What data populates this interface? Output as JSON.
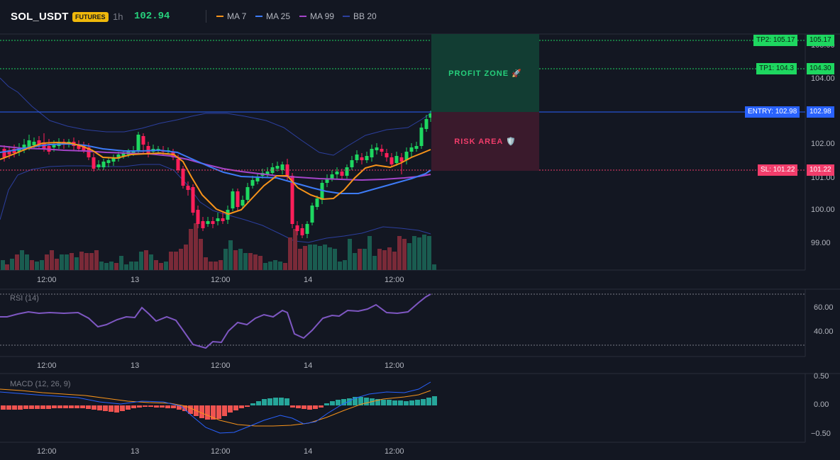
{
  "header": {
    "symbol": "SOL_USDT",
    "badge": "FUTURES",
    "timeframe": "1h",
    "price": "102.94"
  },
  "legend": [
    {
      "label": "MA 7",
      "color": "#f7931a"
    },
    {
      "label": "MA 25",
      "color": "#3d7bf7"
    },
    {
      "label": "MA 99",
      "color": "#a445c9"
    },
    {
      "label": "BB 20",
      "color": "#2c3f9e"
    }
  ],
  "zones": {
    "profit": "PROFIT ZONE 🚀",
    "risk": "RISK AREA 🛡️"
  },
  "price_tags": {
    "tp2": "TP2: 105.17",
    "tp2_axis": "105.17",
    "tp1": "TP1: 104.3",
    "tp1_axis": "104.30",
    "entry": "ENTRY: 102.98",
    "entry_axis": "102.98",
    "sl": "SL: 101.22",
    "sl_axis": "101.22"
  },
  "price_axis": [
    "105.00",
    "104.00",
    "102.00",
    "101.00",
    "100.00",
    "99.00"
  ],
  "time_axis": [
    "12:00",
    "13",
    "12:00",
    "14",
    "12:00"
  ],
  "rsi": {
    "title": "RSI (14)",
    "axis": [
      "60.00",
      "40.00"
    ]
  },
  "macd": {
    "title": "MACD (12, 26, 9)",
    "axis": [
      "0.50",
      "0.00",
      "−0.50"
    ]
  },
  "colors": {
    "up": "#26a69a",
    "down": "#ef5350",
    "candle_up": "#1ed760",
    "candle_down": "#ff1f5a",
    "vol_up": "#1a5c50",
    "vol_down": "#7a2a38"
  }
}
